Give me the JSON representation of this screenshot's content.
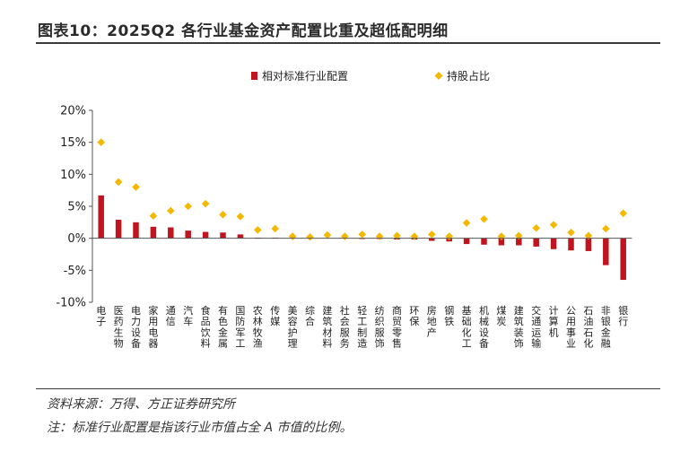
{
  "header": {
    "title": "图表10：2025Q2 各行业基金资产配置比重及超低配明细"
  },
  "footer": {
    "source": "资料来源：万得、方正证券研究所",
    "note": "注：标准行业配置是指该行业市值占全 A 市值的比例。"
  },
  "colors": {
    "bar": "#C0151F",
    "dot": "#F5B800"
  },
  "chart_data": {
    "type": "bar",
    "categories": [
      "电子",
      "医药生物",
      "电力设备",
      "家用电器",
      "通信",
      "汽车",
      "食品饮料",
      "有色金属",
      "国防军工",
      "农林牧渔",
      "传媒",
      "美容护理",
      "综合",
      "建筑材料",
      "社会服务",
      "轻工制造",
      "纺织服饰",
      "商贸零售",
      "环保",
      "房地产",
      "钢铁",
      "基础化工",
      "机械设备",
      "煤炭",
      "建筑装饰",
      "交通运输",
      "计算机",
      "公用事业",
      "石油石化",
      "非银金融",
      "银行"
    ],
    "series": [
      {
        "name": "相对标准行业配置",
        "type": "bar",
        "values": [
          6.7,
          2.9,
          2.5,
          1.8,
          1.7,
          1.2,
          1.0,
          0.9,
          0.6,
          0.1,
          0.1,
          0.1,
          0.0,
          0.0,
          0.0,
          -0.1,
          -0.1,
          -0.2,
          -0.2,
          -0.4,
          -0.5,
          -0.9,
          -1.0,
          -1.1,
          -1.1,
          -1.3,
          -1.7,
          -1.9,
          -2.0,
          -4.2,
          -6.5
        ]
      },
      {
        "name": "持股占比",
        "type": "scatter",
        "values": [
          15.0,
          8.8,
          8.0,
          3.5,
          4.3,
          5.0,
          5.4,
          3.7,
          3.4,
          1.3,
          1.5,
          0.3,
          0.2,
          0.5,
          0.3,
          0.6,
          0.3,
          0.4,
          0.3,
          0.6,
          0.3,
          2.4,
          3.0,
          0.3,
          0.4,
          1.6,
          2.1,
          0.9,
          0.4,
          1.5,
          3.9
        ]
      }
    ],
    "yticks": [
      "20%",
      "15%",
      "10%",
      "5%",
      "0%",
      "-5%",
      "-10%"
    ],
    "ylim": [
      -10,
      20
    ],
    "legend_position": "top-center",
    "grid": false
  }
}
